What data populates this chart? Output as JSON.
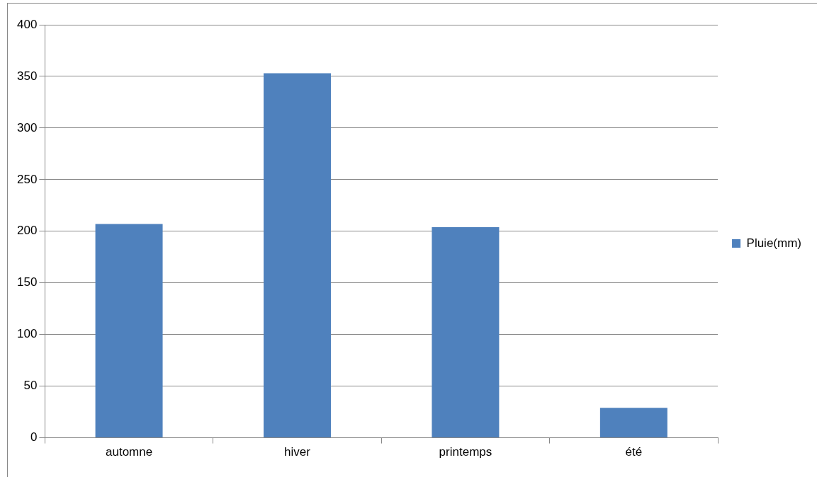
{
  "chart_data": {
    "type": "bar",
    "categories": [
      "automne",
      "hiver",
      "printemps",
      "été"
    ],
    "series": [
      {
        "name": "Pluie(mm)",
        "color": "#4f81bd",
        "values": [
          207,
          353,
          204,
          29
        ]
      }
    ],
    "ylim": [
      0,
      400
    ],
    "yticks": [
      0,
      50,
      100,
      150,
      200,
      250,
      300,
      350,
      400
    ],
    "grid": "y",
    "legend": "right"
  }
}
